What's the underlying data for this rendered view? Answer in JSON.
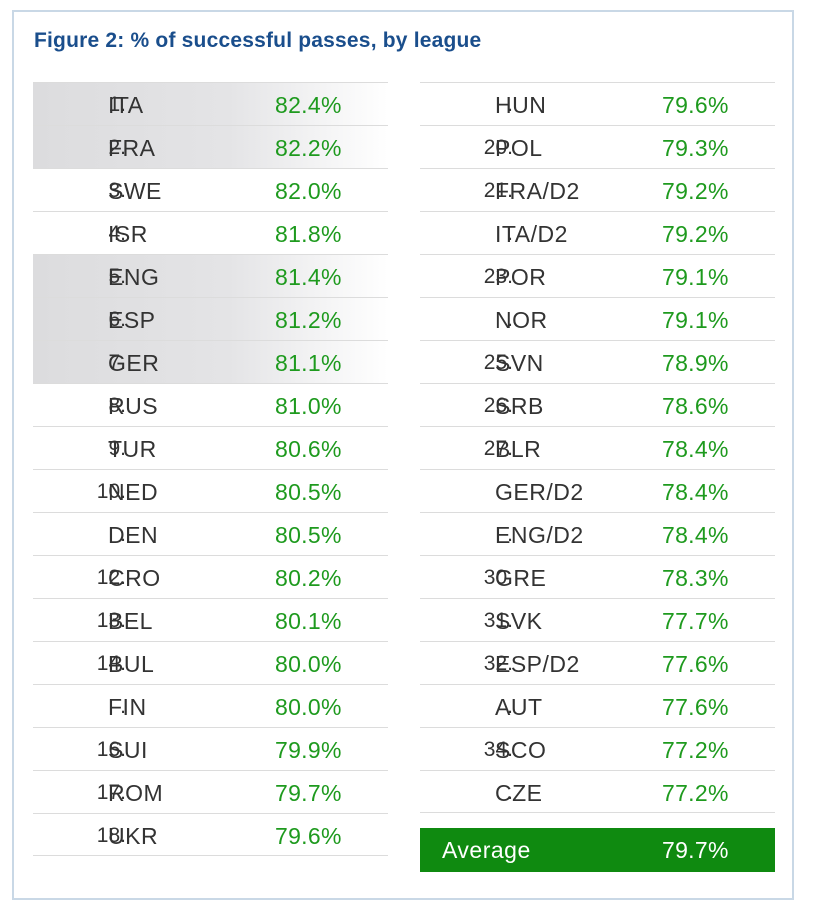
{
  "chart_data": {
    "type": "table",
    "title": "Figure 2: % of successful passes, by league",
    "columns": [
      "rank",
      "league",
      "successful_passes_pct"
    ],
    "left_rows": [
      {
        "rank": "1.",
        "league": "ITA",
        "value": "82.4%",
        "highlight": true
      },
      {
        "rank": "2.",
        "league": "FRA",
        "value": "82.2%",
        "highlight": true
      },
      {
        "rank": "3.",
        "league": "SWE",
        "value": "82.0%",
        "highlight": false
      },
      {
        "rank": "4.",
        "league": "ISR",
        "value": "81.8%",
        "highlight": false
      },
      {
        "rank": "5.",
        "league": "ENG",
        "value": "81.4%",
        "highlight": true
      },
      {
        "rank": "6.",
        "league": "ESP",
        "value": "81.2%",
        "highlight": true
      },
      {
        "rank": "7.",
        "league": "GER",
        "value": "81.1%",
        "highlight": true
      },
      {
        "rank": "8.",
        "league": "RUS",
        "value": "81.0%",
        "highlight": false
      },
      {
        "rank": "9.",
        "league": "TUR",
        "value": "80.6%",
        "highlight": false
      },
      {
        "rank": "10.",
        "league": "NED",
        "value": "80.5%",
        "highlight": false
      },
      {
        "rank": ".",
        "league": "DEN",
        "value": "80.5%",
        "highlight": false
      },
      {
        "rank": "12.",
        "league": "CRO",
        "value": "80.2%",
        "highlight": false
      },
      {
        "rank": "13.",
        "league": "BEL",
        "value": "80.1%",
        "highlight": false
      },
      {
        "rank": "14.",
        "league": "BUL",
        "value": "80.0%",
        "highlight": false
      },
      {
        "rank": ".",
        "league": "FIN",
        "value": "80.0%",
        "highlight": false
      },
      {
        "rank": "16.",
        "league": "SUI",
        "value": "79.9%",
        "highlight": false
      },
      {
        "rank": "17.",
        "league": "ROM",
        "value": "79.7%",
        "highlight": false
      },
      {
        "rank": "18.",
        "league": "UKR",
        "value": "79.6%",
        "highlight": false
      }
    ],
    "right_rows": [
      {
        "rank": ".",
        "league": "HUN",
        "value": "79.6%",
        "highlight": false
      },
      {
        "rank": "20.",
        "league": "POL",
        "value": "79.3%",
        "highlight": false
      },
      {
        "rank": "21.",
        "league": "FRA/D2",
        "value": "79.2%",
        "highlight": false
      },
      {
        "rank": ".",
        "league": "ITA/D2",
        "value": "79.2%",
        "highlight": false
      },
      {
        "rank": "23.",
        "league": "POR",
        "value": "79.1%",
        "highlight": false
      },
      {
        "rank": ".",
        "league": "NOR",
        "value": "79.1%",
        "highlight": false
      },
      {
        "rank": "25.",
        "league": "SVN",
        "value": "78.9%",
        "highlight": false
      },
      {
        "rank": "26.",
        "league": "SRB",
        "value": "78.6%",
        "highlight": false
      },
      {
        "rank": "27.",
        "league": "BLR",
        "value": "78.4%",
        "highlight": false
      },
      {
        "rank": ".",
        "league": "GER/D2",
        "value": "78.4%",
        "highlight": false
      },
      {
        "rank": ".",
        "league": "ENG/D2",
        "value": "78.4%",
        "highlight": false
      },
      {
        "rank": "30.",
        "league": "GRE",
        "value": "78.3%",
        "highlight": false
      },
      {
        "rank": "31.",
        "league": "SVK",
        "value": "77.7%",
        "highlight": false
      },
      {
        "rank": "32.",
        "league": "ESP/D2",
        "value": "77.6%",
        "highlight": false
      },
      {
        "rank": ".",
        "league": "AUT",
        "value": "77.6%",
        "highlight": false
      },
      {
        "rank": "34.",
        "league": "SCO",
        "value": "77.2%",
        "highlight": false
      },
      {
        "rank": ".",
        "league": "CZE",
        "value": "77.2%",
        "highlight": false
      }
    ],
    "average": {
      "label": "Average",
      "value": "79.7%"
    },
    "colors": {
      "title": "#1a4e8c",
      "value": "#1e9a1e",
      "average_bg": "#0f8a10",
      "highlight": "#dcdcde"
    }
  }
}
